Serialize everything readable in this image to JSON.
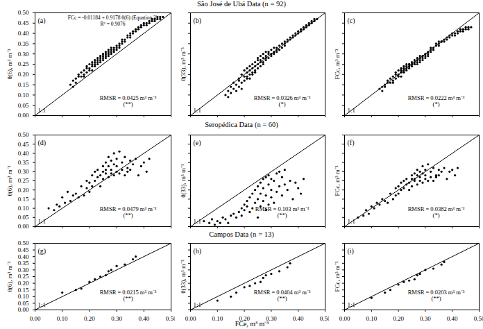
{
  "chart_data": {
    "type": "scatter",
    "color": "#000000",
    "marker": "circle",
    "xlabel": "FCe, m³ m⁻³",
    "line_label": "1:1",
    "xlim": [
      0,
      0.5
    ],
    "xticks": [
      {
        "value": 0,
        "label": "0.00"
      },
      {
        "value": 0.1,
        "label": "0.10"
      },
      {
        "value": 0.2,
        "label": "0.20"
      },
      {
        "value": 0.3,
        "label": "0.30"
      },
      {
        "value": 0.4,
        "label": "0.40"
      },
      {
        "value": 0.5,
        "label": "0.50"
      }
    ],
    "ylim": [
      0,
      0.5
    ],
    "yticks": [
      {
        "value": 0,
        "label": "0.00"
      },
      {
        "value": 0.05,
        "label": "0.05"
      },
      {
        "value": 0.1,
        "label": "0.10"
      },
      {
        "value": 0.15,
        "label": "0.15"
      },
      {
        "value": 0.2,
        "label": "0.20"
      },
      {
        "value": 0.25,
        "label": "0.25"
      },
      {
        "value": 0.3,
        "label": "0.30"
      },
      {
        "value": 0.35,
        "label": "0.35"
      },
      {
        "value": 0.4,
        "label": "0.40"
      },
      {
        "value": 0.45,
        "label": "0.45"
      },
      {
        "value": 0.5,
        "label": "0.50"
      }
    ],
    "groups": [
      {
        "title": "São José de Ubá Data (n = 92)",
        "x": [
          0.13,
          0.14,
          0.14,
          0.15,
          0.15,
          0.16,
          0.16,
          0.17,
          0.17,
          0.18,
          0.18,
          0.18,
          0.19,
          0.19,
          0.19,
          0.2,
          0.2,
          0.2,
          0.21,
          0.21,
          0.21,
          0.21,
          0.22,
          0.22,
          0.22,
          0.22,
          0.23,
          0.23,
          0.23,
          0.23,
          0.24,
          0.24,
          0.24,
          0.24,
          0.25,
          0.25,
          0.25,
          0.25,
          0.26,
          0.26,
          0.26,
          0.26,
          0.27,
          0.27,
          0.27,
          0.27,
          0.28,
          0.28,
          0.28,
          0.28,
          0.29,
          0.29,
          0.29,
          0.3,
          0.3,
          0.3,
          0.31,
          0.31,
          0.31,
          0.32,
          0.32,
          0.32,
          0.33,
          0.33,
          0.34,
          0.34,
          0.35,
          0.35,
          0.35,
          0.36,
          0.36,
          0.37,
          0.37,
          0.38,
          0.38,
          0.39,
          0.39,
          0.4,
          0.4,
          0.41,
          0.41,
          0.42,
          0.42,
          0.43,
          0.43,
          0.44,
          0.44,
          0.45,
          0.45,
          0.46,
          0.46,
          0.47
        ],
        "panels": [
          {
            "label": "(a)",
            "ylabel": "θ(6), m³ m⁻³",
            "tick_labels": "y",
            "equation": "FCc = -0.01184 + 0.9178 θ(6) (Equation 3)",
            "r2": "R² = 0.9076",
            "annotation": "RMSR = 0.0425 m³ m⁻³",
            "significance": "(**)",
            "values": [
              0.15,
              0.17,
              0.14,
              0.18,
              0.16,
              0.19,
              0.2,
              0.19,
              0.21,
              0.2,
              0.22,
              0.19,
              0.23,
              0.21,
              0.24,
              0.25,
              0.22,
              0.23,
              0.26,
              0.24,
              0.25,
              0.22,
              0.26,
              0.27,
              0.24,
              0.25,
              0.27,
              0.28,
              0.26,
              0.25,
              0.28,
              0.27,
              0.29,
              0.26,
              0.29,
              0.28,
              0.3,
              0.27,
              0.29,
              0.3,
              0.28,
              0.31,
              0.3,
              0.32,
              0.29,
              0.31,
              0.33,
              0.31,
              0.3,
              0.32,
              0.32,
              0.33,
              0.31,
              0.34,
              0.33,
              0.32,
              0.35,
              0.34,
              0.33,
              0.36,
              0.35,
              0.37,
              0.37,
              0.36,
              0.38,
              0.39,
              0.39,
              0.4,
              0.38,
              0.4,
              0.41,
              0.41,
              0.42,
              0.42,
              0.43,
              0.43,
              0.44,
              0.44,
              0.45,
              0.45,
              0.44,
              0.45,
              0.46,
              0.46,
              0.47,
              0.46,
              0.47,
              0.47,
              0.48,
              0.48,
              0.47,
              0.48
            ]
          },
          {
            "label": "(b)",
            "ylabel": "θ(33), m³ m⁻³",
            "tick_labels": false,
            "annotation": "RMSR = 0.0326 m³ m⁻³",
            "significance": "(*)",
            "values": [
              0.1,
              0.09,
              0.12,
              0.11,
              0.14,
              0.13,
              0.16,
              0.12,
              0.15,
              0.17,
              0.14,
              0.18,
              0.16,
              0.2,
              0.13,
              0.19,
              0.22,
              0.17,
              0.21,
              0.18,
              0.23,
              0.19,
              0.2,
              0.24,
              0.22,
              0.18,
              0.21,
              0.25,
              0.23,
              0.2,
              0.22,
              0.26,
              0.24,
              0.21,
              0.27,
              0.25,
              0.23,
              0.28,
              0.26,
              0.24,
              0.29,
              0.27,
              0.25,
              0.28,
              0.3,
              0.26,
              0.29,
              0.27,
              0.31,
              0.28,
              0.3,
              0.28,
              0.31,
              0.29,
              0.32,
              0.3,
              0.31,
              0.33,
              0.3,
              0.32,
              0.33,
              0.31,
              0.34,
              0.32,
              0.35,
              0.33,
              0.36,
              0.34,
              0.35,
              0.37,
              0.36,
              0.38,
              0.37,
              0.39,
              0.38,
              0.4,
              0.39,
              0.41,
              0.4,
              0.42,
              0.41,
              0.43,
              0.42,
              0.44,
              0.43,
              0.45,
              0.44,
              0.46,
              0.45,
              0.47,
              0.46,
              0.47
            ]
          },
          {
            "label": "(c)",
            "ylabel": "FCc, m³ m⁻³",
            "tick_labels": false,
            "annotation": "RMSR = 0.0222 m³ m⁻³",
            "significance": "(*)",
            "values": [
              0.13,
              0.14,
              0.12,
              0.15,
              0.14,
              0.16,
              0.17,
              0.16,
              0.18,
              0.17,
              0.19,
              0.16,
              0.2,
              0.18,
              0.21,
              0.22,
              0.19,
              0.2,
              0.23,
              0.21,
              0.22,
              0.19,
              0.23,
              0.24,
              0.21,
              0.22,
              0.24,
              0.25,
              0.23,
              0.22,
              0.25,
              0.24,
              0.25,
              0.23,
              0.25,
              0.25,
              0.26,
              0.24,
              0.25,
              0.26,
              0.25,
              0.27,
              0.26,
              0.28,
              0.25,
              0.27,
              0.29,
              0.27,
              0.26,
              0.28,
              0.28,
              0.29,
              0.27,
              0.3,
              0.29,
              0.28,
              0.31,
              0.3,
              0.29,
              0.32,
              0.31,
              0.33,
              0.33,
              0.32,
              0.34,
              0.35,
              0.35,
              0.36,
              0.34,
              0.36,
              0.36,
              0.36,
              0.37,
              0.37,
              0.38,
              0.38,
              0.39,
              0.39,
              0.4,
              0.4,
              0.39,
              0.4,
              0.41,
              0.41,
              0.42,
              0.41,
              0.42,
              0.42,
              0.43,
              0.43,
              0.42,
              0.43
            ]
          }
        ]
      },
      {
        "title": "Seropédica Data (n = 60)",
        "x": [
          0.05,
          0.07,
          0.08,
          0.09,
          0.1,
          0.11,
          0.12,
          0.13,
          0.14,
          0.15,
          0.16,
          0.17,
          0.18,
          0.19,
          0.19,
          0.2,
          0.2,
          0.21,
          0.21,
          0.22,
          0.22,
          0.23,
          0.23,
          0.24,
          0.24,
          0.25,
          0.25,
          0.25,
          0.26,
          0.26,
          0.26,
          0.27,
          0.27,
          0.27,
          0.28,
          0.28,
          0.28,
          0.29,
          0.29,
          0.29,
          0.3,
          0.3,
          0.3,
          0.31,
          0.31,
          0.32,
          0.32,
          0.33,
          0.33,
          0.34,
          0.34,
          0.35,
          0.35,
          0.36,
          0.37,
          0.38,
          0.39,
          0.4,
          0.41,
          0.42
        ],
        "panels": [
          {
            "label": "(d)",
            "ylabel": "θ(6), m³ m⁻³",
            "tick_labels": "y",
            "annotation": "RMSR = 0.0479 m³ m⁻³",
            "significance": "(**)",
            "values": [
              0.1,
              0.09,
              0.12,
              0.11,
              0.16,
              0.13,
              0.19,
              0.14,
              0.17,
              0.18,
              0.16,
              0.22,
              0.17,
              0.25,
              0.21,
              0.24,
              0.19,
              0.28,
              0.22,
              0.3,
              0.25,
              0.27,
              0.31,
              0.22,
              0.28,
              0.33,
              0.26,
              0.3,
              0.35,
              0.29,
              0.31,
              0.27,
              0.38,
              0.33,
              0.29,
              0.36,
              0.31,
              0.28,
              0.34,
              0.4,
              0.3,
              0.33,
              0.37,
              0.29,
              0.41,
              0.31,
              0.35,
              0.28,
              0.38,
              0.32,
              0.3,
              0.36,
              0.31,
              0.34,
              0.37,
              0.28,
              0.33,
              0.35,
              0.3,
              0.37
            ]
          },
          {
            "label": "(e)",
            "ylabel": "θ(33), m³ m⁻³",
            "tick_labels": false,
            "annotation": "RMSR = 0.103 m³ m⁻³",
            "significance": "(**)",
            "values": [
              0.03,
              0.02,
              0.04,
              0.01,
              0.03,
              0.02,
              0.05,
              0.04,
              0.02,
              0.06,
              0.07,
              0.05,
              0.08,
              0.1,
              0.06,
              0.12,
              0.09,
              0.14,
              0.11,
              0.16,
              0.08,
              0.18,
              0.1,
              0.2,
              0.13,
              0.05,
              0.22,
              0.15,
              0.24,
              0.11,
              0.18,
              0.26,
              0.14,
              0.21,
              0.09,
              0.27,
              0.17,
              0.23,
              0.12,
              0.28,
              0.2,
              0.16,
              0.26,
              0.25,
              0.13,
              0.29,
              0.19,
              0.22,
              0.3,
              0.17,
              0.27,
              0.23,
              0.31,
              0.2,
              0.25,
              0.15,
              0.24,
              0.21,
              0.18,
              0.26
            ]
          },
          {
            "label": "(f)",
            "ylabel": "FCc, m³ m⁻³",
            "tick_labels": false,
            "annotation": "RMSR = 0.0382 m³ m⁻³",
            "significance": "(*)",
            "values": [
              0.05,
              0.06,
              0.09,
              0.07,
              0.11,
              0.1,
              0.13,
              0.12,
              0.15,
              0.14,
              0.13,
              0.18,
              0.15,
              0.21,
              0.17,
              0.22,
              0.18,
              0.24,
              0.2,
              0.25,
              0.21,
              0.23,
              0.26,
              0.2,
              0.24,
              0.28,
              0.22,
              0.26,
              0.29,
              0.25,
              0.26,
              0.23,
              0.31,
              0.28,
              0.25,
              0.3,
              0.27,
              0.24,
              0.29,
              0.33,
              0.26,
              0.28,
              0.31,
              0.25,
              0.34,
              0.27,
              0.3,
              0.25,
              0.32,
              0.28,
              0.27,
              0.31,
              0.28,
              0.3,
              0.32,
              0.26,
              0.3,
              0.31,
              0.28,
              0.32
            ]
          }
        ]
      },
      {
        "title": "Campos Data (n = 13)",
        "x": [
          0.1,
          0.15,
          0.17,
          0.2,
          0.22,
          0.24,
          0.26,
          0.27,
          0.28,
          0.3,
          0.33,
          0.36,
          0.37
        ],
        "panels": [
          {
            "label": "(g)",
            "ylabel": "θ(6), m³ m⁻³",
            "tick_labels": true,
            "annotation": "RMSR = 0.0215 m³ m⁻³",
            "significance": "(**)",
            "values": [
              0.13,
              0.15,
              0.16,
              0.21,
              0.23,
              0.25,
              0.26,
              0.29,
              0.3,
              0.33,
              0.34,
              0.38,
              0.4
            ]
          },
          {
            "label": "(h)",
            "ylabel": "θ(33), m³ m⁻³",
            "tick_labels": "x",
            "annotation": "RMSR = 0.0404 m³ m⁻³",
            "significance": "(**)",
            "values": [
              0.07,
              0.1,
              0.13,
              0.17,
              0.18,
              0.2,
              0.21,
              0.24,
              0.26,
              0.27,
              0.29,
              0.32,
              0.35
            ]
          },
          {
            "label": "(i)",
            "ylabel": "FCc, m³ m⁻³",
            "tick_labels": "x",
            "annotation": "RMSR = 0.0203 m³ m⁻³",
            "significance": "(**)",
            "values": [
              0.09,
              0.13,
              0.15,
              0.19,
              0.21,
              0.22,
              0.23,
              0.26,
              0.27,
              0.3,
              0.31,
              0.34,
              0.36
            ]
          }
        ]
      }
    ]
  }
}
